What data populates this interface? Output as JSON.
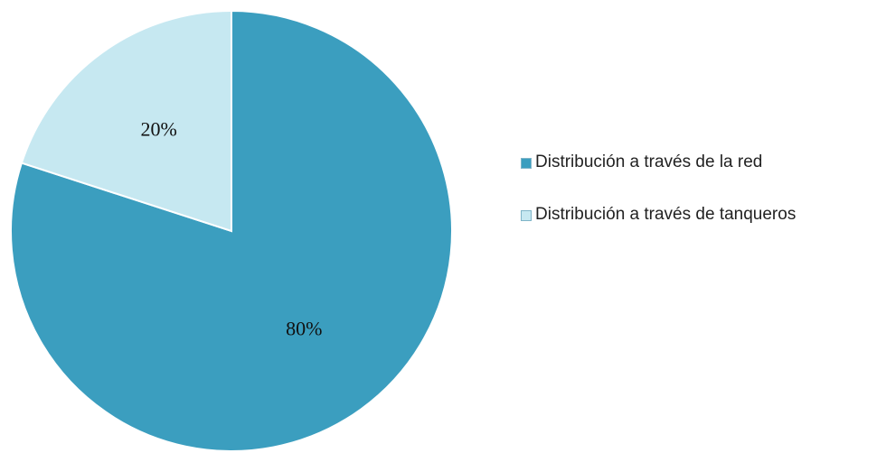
{
  "chart_data": {
    "type": "pie",
    "categories": [
      "Distribución a través de la red",
      "Distribución a través de tanqueros"
    ],
    "values": [
      80,
      20
    ],
    "value_labels": [
      "80%",
      "20%"
    ],
    "colors": [
      "#3b9ebf",
      "#c6e8f1"
    ],
    "legend": "right"
  }
}
